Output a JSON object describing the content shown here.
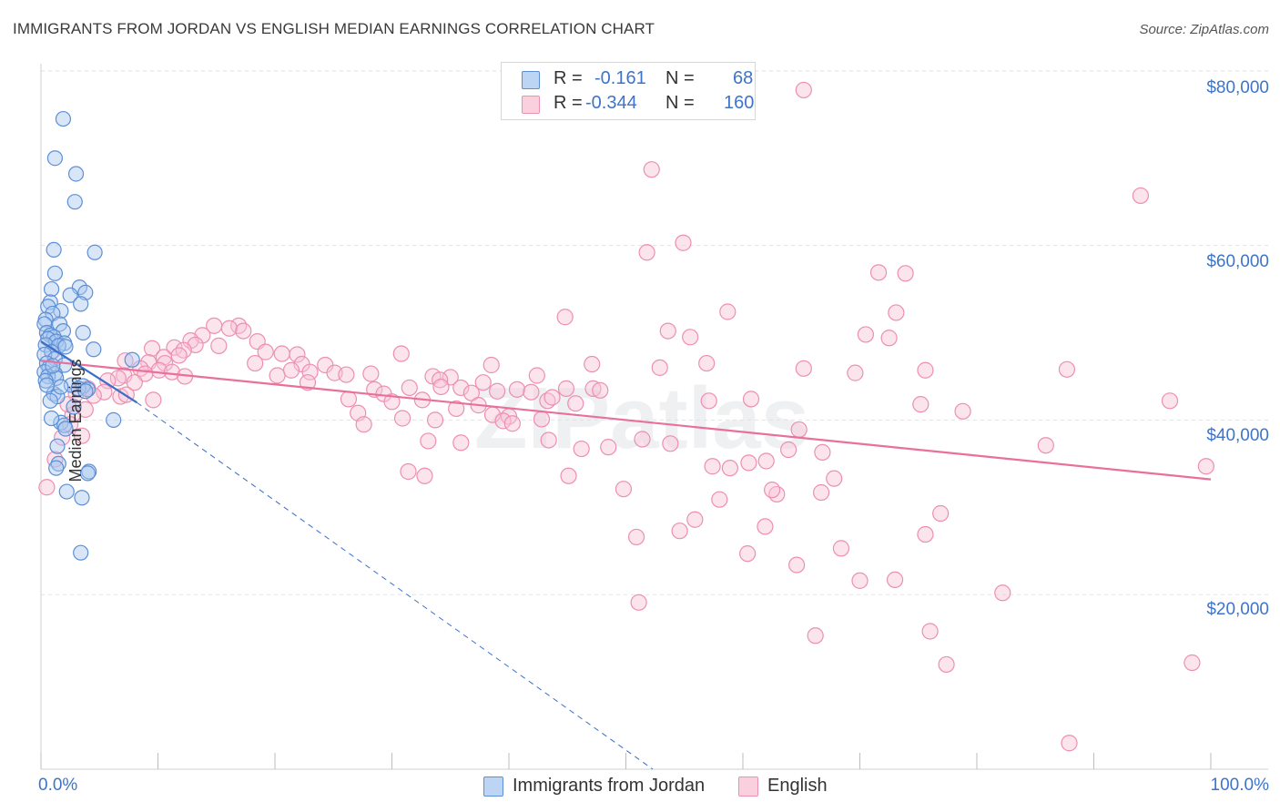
{
  "title": "IMMIGRANTS FROM JORDAN VS ENGLISH MEDIAN EARNINGS CORRELATION CHART",
  "source": "Source: ZipAtlas.com",
  "watermark": "ZIPatlas",
  "legend": {
    "rows": [
      {
        "r_label": "R =",
        "r_value": "-0.161",
        "n_label": "N =",
        "n_value": "68"
      },
      {
        "r_label": "R =",
        "r_value": "-0.344",
        "n_label": "N =",
        "n_value": "160"
      }
    ]
  },
  "bottom_legend": [
    "Immigrants from Jordan",
    "English"
  ],
  "axis": {
    "x_min_label": "0.0%",
    "x_max_label": "100.0%",
    "y_title": "Median Earnings",
    "y_ticks": [
      "$80,000",
      "$60,000",
      "$40,000",
      "$20,000"
    ]
  },
  "colors": {
    "jordan_fill": "#a9c8f0",
    "jordan_stroke": "#5c8fd6",
    "jordan_line": "#3a6fc9",
    "english_fill": "#f8c4d6",
    "english_stroke": "#ec8fb0",
    "english_line": "#e8709a",
    "grid": "#e3e3e3",
    "accent_text": "#3d74c9"
  },
  "chart_data": {
    "type": "scatter",
    "title": "IMMIGRANTS FROM JORDAN VS ENGLISH MEDIAN EARNINGS CORRELATION CHART",
    "xlabel": "",
    "ylabel": "Median Earnings",
    "xlim": [
      0,
      100
    ],
    "ylim": [
      0,
      82000
    ],
    "grid": true,
    "legend_position": "top-center",
    "series": [
      {
        "name": "Immigrants from Jordan",
        "r": -0.161,
        "n": 68,
        "trend": {
          "x": [
            0,
            8.2
          ],
          "y": [
            49000,
            42000
          ]
        },
        "trend_extension": {
          "x": [
            8.2,
            52.3
          ],
          "y": [
            42000,
            0
          ]
        },
        "points": [
          [
            1.9,
            74500
          ],
          [
            1.2,
            70000
          ],
          [
            3.0,
            68200
          ],
          [
            2.9,
            65000
          ],
          [
            1.1,
            59500
          ],
          [
            4.6,
            59200
          ],
          [
            1.2,
            56800
          ],
          [
            3.3,
            55200
          ],
          [
            0.9,
            55000
          ],
          [
            3.8,
            54600
          ],
          [
            2.5,
            54300
          ],
          [
            0.8,
            53500
          ],
          [
            3.4,
            53300
          ],
          [
            0.6,
            53000
          ],
          [
            1.7,
            52500
          ],
          [
            1.0,
            52200
          ],
          [
            0.4,
            51500
          ],
          [
            1.6,
            51000
          ],
          [
            0.3,
            51000
          ],
          [
            1.9,
            50200
          ],
          [
            3.6,
            50000
          ],
          [
            0.5,
            50000
          ],
          [
            0.8,
            49700
          ],
          [
            1.1,
            49500
          ],
          [
            0.6,
            49300
          ],
          [
            1.3,
            49000
          ],
          [
            2.0,
            48800
          ],
          [
            0.4,
            48600
          ],
          [
            1.5,
            48500
          ],
          [
            2.1,
            48400
          ],
          [
            4.5,
            48100
          ],
          [
            0.9,
            47800
          ],
          [
            0.3,
            47500
          ],
          [
            1.2,
            47000
          ],
          [
            0.5,
            46500
          ],
          [
            7.8,
            46900
          ],
          [
            2.0,
            46300
          ],
          [
            0.7,
            46000
          ],
          [
            0.3,
            45500
          ],
          [
            1.2,
            45300
          ],
          [
            0.6,
            45000
          ],
          [
            1.3,
            44800
          ],
          [
            0.4,
            44500
          ],
          [
            2.6,
            44000
          ],
          [
            3.6,
            43900
          ],
          [
            3.2,
            43600
          ],
          [
            4.0,
            43500
          ],
          [
            3.8,
            43300
          ],
          [
            1.1,
            43000
          ],
          [
            1.4,
            42700
          ],
          [
            0.8,
            42200
          ],
          [
            6.2,
            40000
          ],
          [
            1.7,
            39700
          ],
          [
            2.0,
            39400
          ],
          [
            1.4,
            37000
          ],
          [
            1.5,
            35000
          ],
          [
            1.3,
            34500
          ],
          [
            4.1,
            34100
          ],
          [
            4.0,
            33900
          ],
          [
            2.2,
            31800
          ],
          [
            3.5,
            31100
          ],
          [
            3.4,
            24800
          ],
          [
            2.1,
            39000
          ],
          [
            0.9,
            40200
          ],
          [
            2.8,
            41500
          ],
          [
            1.7,
            43800
          ],
          [
            0.5,
            44000
          ],
          [
            1.0,
            46200
          ]
        ]
      },
      {
        "name": "English",
        "r": -0.344,
        "n": 160,
        "trend": {
          "x": [
            0,
            100
          ],
          "y": [
            46800,
            33200
          ]
        },
        "points": [
          [
            65.2,
            77800
          ],
          [
            52.2,
            68700
          ],
          [
            94.0,
            65700
          ],
          [
            54.9,
            60300
          ],
          [
            51.8,
            59200
          ],
          [
            71.6,
            56900
          ],
          [
            73.9,
            56800
          ],
          [
            58.7,
            52400
          ],
          [
            73.1,
            52300
          ],
          [
            44.8,
            51800
          ],
          [
            53.6,
            50200
          ],
          [
            70.5,
            49800
          ],
          [
            55.5,
            49500
          ],
          [
            72.5,
            49400
          ],
          [
            14.8,
            50800
          ],
          [
            16.9,
            50800
          ],
          [
            16.1,
            50500
          ],
          [
            17.3,
            50200
          ],
          [
            13.8,
            49700
          ],
          [
            12.8,
            49100
          ],
          [
            18.5,
            49000
          ],
          [
            13.2,
            48600
          ],
          [
            11.4,
            48300
          ],
          [
            9.5,
            48200
          ],
          [
            12.2,
            48000
          ],
          [
            19.2,
            47800
          ],
          [
            20.6,
            47600
          ],
          [
            21.9,
            47500
          ],
          [
            30.8,
            47600
          ],
          [
            11.8,
            47400
          ],
          [
            10.5,
            47200
          ],
          [
            7.2,
            46800
          ],
          [
            9.2,
            46600
          ],
          [
            10.6,
            46500
          ],
          [
            18.3,
            46500
          ],
          [
            22.3,
            46400
          ],
          [
            24.3,
            46300
          ],
          [
            38.5,
            46300
          ],
          [
            52.9,
            46000
          ],
          [
            56.9,
            46500
          ],
          [
            47.1,
            46400
          ],
          [
            65.2,
            45900
          ],
          [
            87.7,
            45800
          ],
          [
            75.6,
            45700
          ],
          [
            69.6,
            45400
          ],
          [
            8.5,
            45900
          ],
          [
            10.1,
            45700
          ],
          [
            11.2,
            45500
          ],
          [
            8.9,
            45300
          ],
          [
            7.1,
            45100
          ],
          [
            12.3,
            45000
          ],
          [
            6.6,
            44800
          ],
          [
            5.7,
            44500
          ],
          [
            21.4,
            45700
          ],
          [
            23.0,
            45500
          ],
          [
            25.1,
            45400
          ],
          [
            26.1,
            45200
          ],
          [
            28.2,
            45300
          ],
          [
            20.2,
            45100
          ],
          [
            33.5,
            45000
          ],
          [
            35.0,
            44900
          ],
          [
            42.4,
            45100
          ],
          [
            34.1,
            44600
          ],
          [
            37.8,
            44300
          ],
          [
            44.9,
            43600
          ],
          [
            47.2,
            43600
          ],
          [
            47.8,
            43400
          ],
          [
            34.2,
            43800
          ],
          [
            31.5,
            43700
          ],
          [
            35.9,
            43700
          ],
          [
            28.5,
            43500
          ],
          [
            40.7,
            43500
          ],
          [
            39.0,
            43300
          ],
          [
            41.9,
            43200
          ],
          [
            29.3,
            43000
          ],
          [
            36.8,
            43100
          ],
          [
            4.0,
            43600
          ],
          [
            5.4,
            43200
          ],
          [
            3.0,
            43000
          ],
          [
            4.5,
            42800
          ],
          [
            6.8,
            42700
          ],
          [
            9.6,
            42300
          ],
          [
            26.3,
            42400
          ],
          [
            30.0,
            42100
          ],
          [
            32.6,
            42300
          ],
          [
            37.4,
            41700
          ],
          [
            43.3,
            42200
          ],
          [
            45.7,
            41900
          ],
          [
            57.1,
            42200
          ],
          [
            60.7,
            42400
          ],
          [
            75.2,
            41800
          ],
          [
            78.8,
            41000
          ],
          [
            96.5,
            42200
          ],
          [
            35.5,
            41300
          ],
          [
            38.6,
            40600
          ],
          [
            40.0,
            40400
          ],
          [
            42.8,
            40100
          ],
          [
            27.1,
            40800
          ],
          [
            30.9,
            40200
          ],
          [
            33.7,
            40000
          ],
          [
            39.5,
            39900
          ],
          [
            40.3,
            39600
          ],
          [
            27.6,
            39500
          ],
          [
            2.7,
            40600
          ],
          [
            2.3,
            41800
          ],
          [
            3.8,
            41200
          ],
          [
            64.8,
            38900
          ],
          [
            51.4,
            37800
          ],
          [
            43.4,
            37700
          ],
          [
            35.9,
            37400
          ],
          [
            33.1,
            37600
          ],
          [
            48.5,
            36900
          ],
          [
            46.2,
            36700
          ],
          [
            53.8,
            37300
          ],
          [
            63.9,
            36600
          ],
          [
            66.8,
            36300
          ],
          [
            85.9,
            37100
          ],
          [
            3.5,
            38200
          ],
          [
            1.8,
            38000
          ],
          [
            2.5,
            39500
          ],
          [
            1.2,
            35500
          ],
          [
            99.6,
            34700
          ],
          [
            62.0,
            35300
          ],
          [
            60.5,
            35100
          ],
          [
            57.4,
            34700
          ],
          [
            58.9,
            34500
          ],
          [
            67.8,
            33300
          ],
          [
            45.1,
            33600
          ],
          [
            31.4,
            34100
          ],
          [
            32.8,
            33600
          ],
          [
            62.9,
            31500
          ],
          [
            49.8,
            32100
          ],
          [
            62.5,
            32000
          ],
          [
            58.0,
            30900
          ],
          [
            66.7,
            31700
          ],
          [
            76.9,
            29300
          ],
          [
            55.9,
            28600
          ],
          [
            61.9,
            27800
          ],
          [
            54.6,
            27300
          ],
          [
            50.9,
            26600
          ],
          [
            75.6,
            26900
          ],
          [
            68.4,
            25300
          ],
          [
            60.4,
            24700
          ],
          [
            64.6,
            23400
          ],
          [
            73.0,
            21700
          ],
          [
            70.0,
            21600
          ],
          [
            82.2,
            20200
          ],
          [
            51.1,
            19100
          ],
          [
            66.2,
            15300
          ],
          [
            76.0,
            15800
          ],
          [
            77.4,
            12000
          ],
          [
            98.4,
            12200
          ],
          [
            87.9,
            3000
          ],
          [
            0.5,
            32300
          ],
          [
            1.0,
            47900
          ],
          [
            7.3,
            42900
          ],
          [
            8.0,
            44300
          ],
          [
            15.2,
            48500
          ],
          [
            22.8,
            44300
          ],
          [
            43.7,
            42600
          ]
        ]
      }
    ]
  }
}
